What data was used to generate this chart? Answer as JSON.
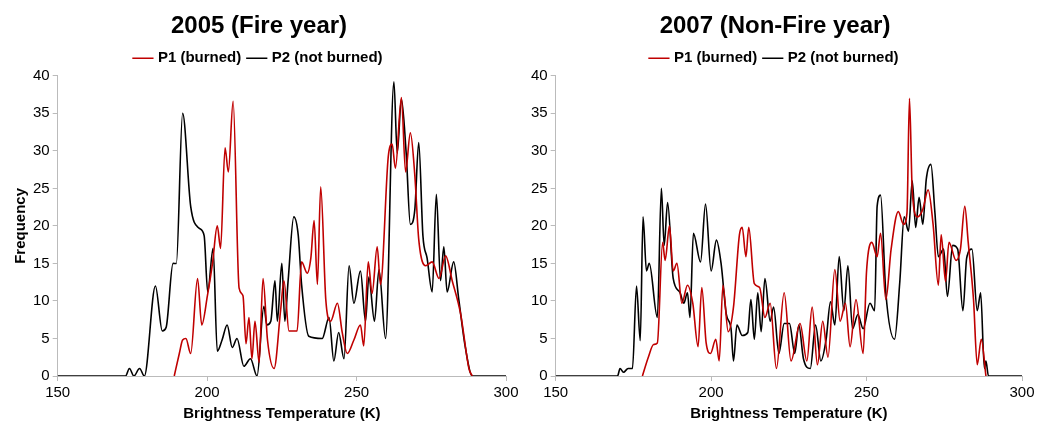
{
  "chart_data": [
    {
      "type": "line",
      "title": "2005 (Fire year)",
      "xlabel": "Brightness Temperature (K)",
      "ylabel": "Frequency",
      "xlim": [
        150,
        300
      ],
      "xticks": [
        150,
        200,
        250,
        300
      ],
      "ylim": [
        0,
        40
      ],
      "yticks": [
        0,
        5,
        10,
        15,
        20,
        25,
        30,
        35,
        40
      ],
      "legend": "top",
      "series": [
        {
          "name": "P1 (burned)",
          "color": "#c00000",
          "x": [
            189,
            190.7,
            191.8,
            192.9,
            194.5,
            196.8,
            198.2,
            200.1,
            201.8,
            203.4,
            204.5,
            206,
            207.1,
            208.7,
            210.7,
            212,
            213,
            214,
            215,
            216,
            217.4,
            218.7,
            220.2,
            222.4,
            224.6,
            225.7,
            227.4,
            230.1,
            231.6,
            233.5,
            234.7,
            235.8,
            236.9,
            238,
            239.7,
            241.3,
            243.6,
            245.2,
            246.9,
            249.1,
            251.3,
            252.4,
            253.9,
            255.2,
            256.9,
            258,
            260.6,
            261.9,
            263,
            265,
            266.4,
            268,
            269.5,
            270.8,
            273.1,
            275.3,
            277.6,
            279.8,
            282,
            284.8,
            287.6,
            288.7
          ],
          "values": [
            0,
            3,
            4.8,
            5,
            3,
            13,
            6.8,
            10.7,
            15,
            20,
            17,
            30.4,
            27.2,
            36.6,
            11.7,
            10.7,
            4.3,
            7.8,
            2.3,
            7.3,
            1.8,
            13,
            4.8,
            1,
            8.8,
            12.7,
            6,
            6,
            15.2,
            13.7,
            15.7,
            20.7,
            12.2,
            25.2,
            10.2,
            7.3,
            9.7,
            5.8,
            3,
            4.8,
            6.8,
            4,
            15.2,
            11,
            17.2,
            12.2,
            29.2,
            30.9,
            27.7,
            37.1,
            27.2,
            32.4,
            26.7,
            18.2,
            14.7,
            15.2,
            13,
            16,
            12.7,
            8.3,
            1,
            0
          ]
        },
        {
          "name": "P2 (not burned)",
          "color": "#000000",
          "x": [
            150,
            172.7,
            174,
            175.5,
            177.4,
            179,
            182.7,
            185,
            186.3,
            188.6,
            189.7,
            191.8,
            194.5,
            197.3,
            199,
            200.2,
            202,
            203.4,
            205,
            206.7,
            208.4,
            210,
            212.3,
            214.5,
            216.7,
            219,
            220,
            221.3,
            222.7,
            223.5,
            225,
            226,
            227.1,
            229,
            230.5,
            231.6,
            234,
            238.5,
            240.8,
            242.4,
            244,
            245.8,
            247.5,
            249.1,
            251.3,
            253,
            254.1,
            256,
            257.5,
            259.7,
            262.5,
            263.6,
            265,
            266.6,
            268,
            269.5,
            270.8,
            272.2,
            273.6,
            275.3,
            276.7,
            278.1,
            279.2,
            280.3,
            282.5,
            284.2,
            286.4,
            288.7,
            300
          ],
          "values": [
            0,
            0,
            1,
            0,
            1,
            0,
            12,
            6,
            6.5,
            15,
            15,
            35,
            22.6,
            19.7,
            18.7,
            11.2,
            17,
            3.3,
            4.8,
            6.8,
            3.8,
            5,
            1.3,
            2.3,
            0,
            9.3,
            6.8,
            7.3,
            12.7,
            7.3,
            15,
            7.3,
            12.7,
            21.2,
            18.7,
            12.2,
            5.3,
            5,
            7.8,
            2,
            5.8,
            2.3,
            14.7,
            9.7,
            14,
            7.3,
            13.2,
            7.3,
            14.2,
            5,
            39.2,
            29.7,
            36.9,
            29.7,
            20.2,
            22.2,
            31.1,
            18.7,
            15.7,
            11.2,
            24.2,
            12.7,
            17.2,
            11.2,
            15.2,
            10.2,
            3.8,
            0,
            0
          ]
        }
      ]
    },
    {
      "type": "line",
      "title": "2007 (Non-Fire year)",
      "xlabel": "Brightness Temperature (K)",
      "xlim": [
        150,
        300
      ],
      "xticks": [
        150,
        200,
        250,
        300
      ],
      "ylim": [
        0,
        40
      ],
      "yticks": [
        0,
        5,
        10,
        15,
        20,
        25,
        30,
        35,
        40
      ],
      "legend": "top",
      "series": [
        {
          "name": "P1 (burned)",
          "color": "#c00000",
          "x": [
            177.9,
            179.8,
            181.5,
            182.7,
            184.4,
            185.2,
            186.6,
            187.8,
            189,
            190.6,
            192.4,
            194.1,
            195.8,
            197,
            198.4,
            199.8,
            201.5,
            202.6,
            203.8,
            205.5,
            207.2,
            209.1,
            210,
            211.2,
            212.1,
            213.9,
            215.6,
            217.3,
            219,
            221,
            223.5,
            225.7,
            228.6,
            230.8,
            232.5,
            234.2,
            235.9,
            237.6,
            239.8,
            241.5,
            243.2,
            244.7,
            246.6,
            248.9,
            250,
            251.7,
            253.4,
            254.5,
            256.2,
            257.9,
            260.2,
            261.9,
            263,
            263.8,
            264.7,
            266.4,
            268.1,
            269.8,
            271.4,
            273.1,
            274,
            275.4,
            276.5,
            278.8,
            280.2,
            281.6,
            282.7,
            284.4,
            285.6,
            286.9,
            288.4
          ],
          "values": [
            0,
            2.5,
            4.2,
            4.4,
            17.8,
            15.4,
            20,
            14,
            15,
            9.7,
            12.1,
            9.7,
            3.9,
            11.8,
            4.4,
            3,
            4.9,
            2,
            12.1,
            5.9,
            9.2,
            18.8,
            19.8,
            15.9,
            19.8,
            12.3,
            11.8,
            7.8,
            9.7,
            1,
            11.1,
            2,
            7,
            2,
            9.2,
            1.5,
            7.3,
            2.5,
            14.2,
            7.3,
            9.7,
            3.9,
            10.2,
            3,
            14,
            17.8,
            15.9,
            19,
            10.2,
            16.9,
            21.9,
            20.2,
            21.7,
            37,
            24.6,
            21.2,
            22.2,
            24.8,
            20.2,
            12.1,
            18.8,
            12.6,
            17.8,
            15.4,
            16.9,
            22.6,
            17.8,
            10.2,
            1.5,
            4.9,
            0
          ]
        },
        {
          "name": "P2 (not burned)",
          "color": "#000000",
          "x": [
            150,
            169.9,
            170.7,
            171.8,
            173.3,
            174.7,
            176,
            177.2,
            178.1,
            179.2,
            180.1,
            182.7,
            184,
            184.9,
            186,
            187.8,
            190,
            191.2,
            192.4,
            193.2,
            194.3,
            196.6,
            198.2,
            200,
            201.7,
            203.2,
            204.9,
            206.4,
            207.2,
            208.3,
            210,
            211.8,
            212.8,
            213.9,
            215,
            216.1,
            217.3,
            219,
            220.1,
            221.8,
            223.5,
            225.2,
            226.9,
            228.2,
            229.7,
            231.9,
            233.6,
            235.3,
            237,
            238.4,
            239.8,
            241.2,
            242.7,
            244,
            245.5,
            247.2,
            248.9,
            251.1,
            252.6,
            253.4,
            254.5,
            256.2,
            259,
            260.7,
            262.1,
            263.5,
            264.7,
            265.8,
            266.9,
            268.1,
            269.2,
            270.7,
            272,
            273.1,
            274.8,
            276,
            277.7,
            279.3,
            281,
            282.2,
            283.9,
            285.6,
            286.7,
            287.9,
            288.4,
            289.2,
            300
          ],
          "values": [
            0,
            0,
            1,
            0.5,
            1,
            1,
            12,
            4.7,
            21.2,
            14,
            15,
            7.8,
            25,
            17.4,
            23.1,
            13,
            11.1,
            9.7,
            11.1,
            7.8,
            19,
            15.2,
            22.9,
            14,
            18.1,
            15,
            8.2,
            6.3,
            2,
            6.8,
            5.4,
            5.8,
            10.2,
            4.9,
            11.1,
            5.9,
            13,
            7.3,
            9.2,
            3,
            7,
            7,
            3,
            6.8,
            2.3,
            1,
            6.8,
            2,
            4.9,
            9.9,
            6.8,
            15.9,
            8.7,
            14.7,
            6.3,
            8.2,
            6.3,
            9.7,
            8.7,
            22.6,
            24.1,
            11.1,
            4.9,
            12.6,
            21.2,
            19.3,
            26,
            19.8,
            23.8,
            20.2,
            26.2,
            28.2,
            21.7,
            15.9,
            16.9,
            10.6,
            17.4,
            16.9,
            8.7,
            15.7,
            16.9,
            8.7,
            11.1,
            1,
            2,
            0,
            0
          ]
        }
      ]
    }
  ]
}
